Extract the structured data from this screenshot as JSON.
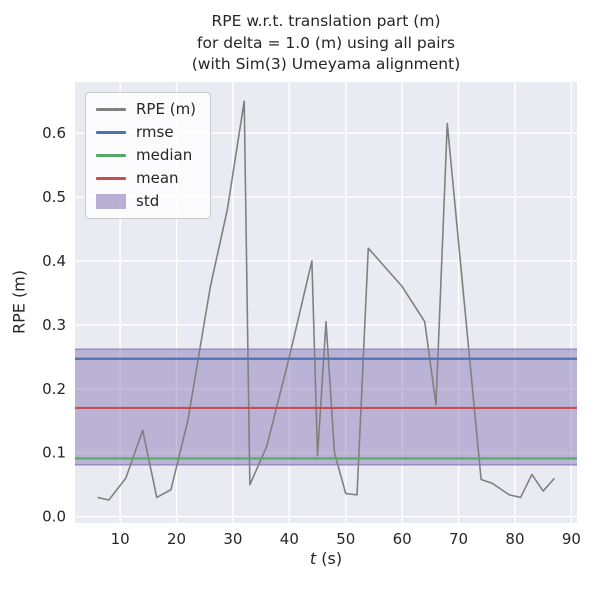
{
  "colors": {
    "figure_bg": "#ffffff",
    "plot_bg": "#eaeaf2",
    "grid": "#ffffff",
    "text": "#262626",
    "rpe": "#808080",
    "rmse": "#4c72b0",
    "median": "#55a868",
    "mean": "#c44e52",
    "std": "#8172b2"
  },
  "chart_data": {
    "type": "line",
    "title": "RPE w.r.t. translation part (m)\nfor delta = 1.0 (m) using all pairs\n(with Sim(3) Umeyama alignment)",
    "xlabel_var": "t",
    "xlabel_unit": " (s)",
    "ylabel": "RPE (m)",
    "xlim": [
      2,
      91
    ],
    "ylim": [
      -0.01,
      0.68
    ],
    "grid": true,
    "legend_position": "upper-left",
    "xticks": [
      10,
      20,
      30,
      40,
      50,
      60,
      70,
      80,
      90
    ],
    "xtick_labels": [
      "10",
      "20",
      "30",
      "40",
      "50",
      "60",
      "70",
      "80",
      "90"
    ],
    "yticks": [
      0.0,
      0.1,
      0.2,
      0.3,
      0.4,
      0.5,
      0.6
    ],
    "ytick_labels": [
      "0.0",
      "0.1",
      "0.2",
      "0.3",
      "0.4",
      "0.5",
      "0.6"
    ],
    "series": [
      {
        "name": "RPE (m)",
        "color_key": "rpe",
        "points": [
          [
            6,
            0.03
          ],
          [
            8,
            0.026
          ],
          [
            11,
            0.06
          ],
          [
            14,
            0.135
          ],
          [
            16.5,
            0.03
          ],
          [
            19,
            0.042
          ],
          [
            22,
            0.15
          ],
          [
            26,
            0.36
          ],
          [
            29,
            0.48
          ],
          [
            32,
            0.65
          ],
          [
            33,
            0.05
          ],
          [
            36,
            0.11
          ],
          [
            40,
            0.25
          ],
          [
            44,
            0.4
          ],
          [
            45,
            0.095
          ],
          [
            46.5,
            0.305
          ],
          [
            48,
            0.1
          ],
          [
            50,
            0.036
          ],
          [
            52,
            0.034
          ],
          [
            54,
            0.42
          ],
          [
            57,
            0.39
          ],
          [
            60,
            0.36
          ],
          [
            64,
            0.305
          ],
          [
            66,
            0.175
          ],
          [
            68,
            0.615
          ],
          [
            74,
            0.058
          ],
          [
            76,
            0.052
          ],
          [
            79,
            0.034
          ],
          [
            81,
            0.03
          ],
          [
            83,
            0.066
          ],
          [
            85,
            0.04
          ],
          [
            87,
            0.06
          ]
        ]
      }
    ],
    "stats": {
      "rmse": 0.247,
      "median": 0.091,
      "mean": 0.17,
      "std_band": [
        0.081,
        0.262
      ]
    },
    "legend": [
      {
        "key": "rpe",
        "label": "RPE (m)",
        "type": "line",
        "color": "#808080"
      },
      {
        "key": "rmse",
        "label": "rmse",
        "type": "line",
        "color": "#4c72b0"
      },
      {
        "key": "median",
        "label": "median",
        "type": "line",
        "color": "#55a868"
      },
      {
        "key": "mean",
        "label": "mean",
        "type": "line",
        "color": "#c44e52"
      },
      {
        "key": "std",
        "label": "std",
        "type": "patch",
        "color": "#8172b2"
      }
    ]
  }
}
